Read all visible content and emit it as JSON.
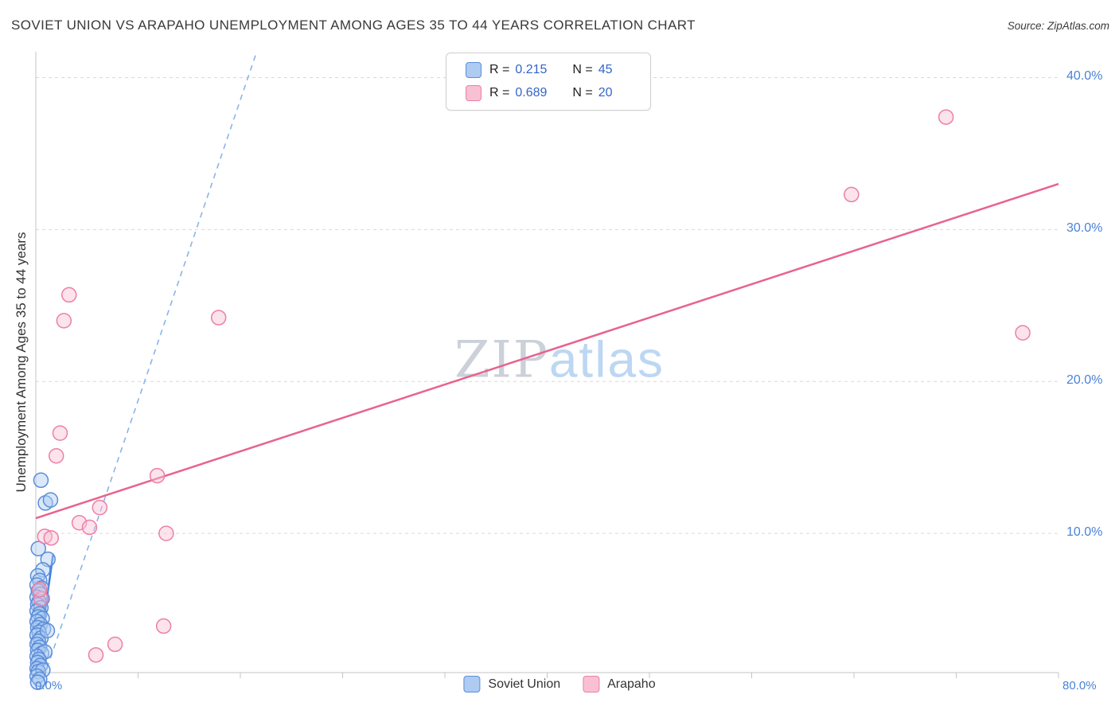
{
  "header": {
    "title": "SOVIET UNION VS ARAPAHO UNEMPLOYMENT AMONG AGES 35 TO 44 YEARS CORRELATION CHART",
    "source": "Source: ZipAtlas.com"
  },
  "watermark": {
    "part1": "ZIP",
    "part2": "atlas"
  },
  "legend_box": {
    "rows": [
      {
        "series": "Soviet Union",
        "r_label": "R =",
        "r": "0.215",
        "n_label": "N =",
        "n": "45"
      },
      {
        "series": "Arapaho",
        "r_label": "R =",
        "r": "0.689",
        "n_label": "N =",
        "n": "20"
      }
    ]
  },
  "axes": {
    "y_label": "Unemployment Among Ages 35 to 44 years",
    "y_ticks": [
      {
        "label": "40.0%",
        "value": 40
      },
      {
        "label": "30.0%",
        "value": 30
      },
      {
        "label": "20.0%",
        "value": 20
      },
      {
        "label": "10.0%",
        "value": 10
      }
    ],
    "x_left_label": "0.0%",
    "x_right_label": "80.0%"
  },
  "bottom_legend": [
    {
      "label": "Soviet Union",
      "fill": "#aecbf2",
      "stroke": "#5b8dd9"
    },
    {
      "label": "Arapaho",
      "fill": "#f9c0d4",
      "stroke": "#ec7fa6"
    }
  ],
  "chart_data": {
    "type": "scatter",
    "title": "Soviet Union vs Arapaho Unemployment Among Ages 35 to 44 years",
    "xlabel": "",
    "ylabel": "Unemployment Among Ages 35 to 44 years",
    "xlim": [
      0,
      80
    ],
    "ylim": [
      0,
      41.7
    ],
    "x_tick_step": 8,
    "y_gridlines": [
      10,
      20,
      30,
      40
    ],
    "series": [
      {
        "name": "Soviet Union",
        "stroke": "#5b8dd9",
        "fill": "#aecbf2",
        "points": [
          [
            0.4,
            13.5
          ],
          [
            0.75,
            12.0
          ],
          [
            1.15,
            12.2
          ],
          [
            0.2,
            9.0
          ],
          [
            0.95,
            8.3
          ],
          [
            0.55,
            7.6
          ],
          [
            0.15,
            7.2
          ],
          [
            0.3,
            6.9
          ],
          [
            0.1,
            6.6
          ],
          [
            0.45,
            6.4
          ],
          [
            0.2,
            6.2
          ],
          [
            0.35,
            6.0
          ],
          [
            0.1,
            5.8
          ],
          [
            0.5,
            5.7
          ],
          [
            0.25,
            5.5
          ],
          [
            0.15,
            5.3
          ],
          [
            0.4,
            5.1
          ],
          [
            0.1,
            4.9
          ],
          [
            0.3,
            4.7
          ],
          [
            0.2,
            4.5
          ],
          [
            0.5,
            4.4
          ],
          [
            0.1,
            4.2
          ],
          [
            0.35,
            4.0
          ],
          [
            0.15,
            3.8
          ],
          [
            0.6,
            3.7
          ],
          [
            0.25,
            3.5
          ],
          [
            0.1,
            3.3
          ],
          [
            0.4,
            3.1
          ],
          [
            0.2,
            2.9
          ],
          [
            0.9,
            3.6
          ],
          [
            0.1,
            2.7
          ],
          [
            0.3,
            2.5
          ],
          [
            0.15,
            2.3
          ],
          [
            0.45,
            2.1
          ],
          [
            0.7,
            2.2
          ],
          [
            0.1,
            1.9
          ],
          [
            0.25,
            1.7
          ],
          [
            0.15,
            1.5
          ],
          [
            0.35,
            1.3
          ],
          [
            0.1,
            1.1
          ],
          [
            0.2,
            0.9
          ],
          [
            0.55,
            1.0
          ],
          [
            0.1,
            0.6
          ],
          [
            0.3,
            0.4
          ],
          [
            0.15,
            0.2
          ]
        ],
        "trends": [
          {
            "x1": 0.05,
            "y1": 0.9,
            "x2": 1.35,
            "y2": 8.6,
            "color": "#3b7de0",
            "width": 2.5,
            "dashed": false
          },
          {
            "x1": 0.1,
            "y1": -0.8,
            "x2": 17.2,
            "y2": 41.5,
            "color": "#8ab4e8",
            "width": 1.6,
            "dashed": true
          }
        ]
      },
      {
        "name": "Arapaho",
        "stroke": "#ec7fa6",
        "fill": "#f9c0d4",
        "points": [
          [
            2.6,
            25.7
          ],
          [
            2.2,
            24.0
          ],
          [
            14.3,
            24.2
          ],
          [
            1.9,
            16.6
          ],
          [
            1.6,
            15.1
          ],
          [
            9.5,
            13.8
          ],
          [
            5.0,
            11.7
          ],
          [
            3.4,
            10.7
          ],
          [
            4.2,
            10.4
          ],
          [
            10.2,
            10.0
          ],
          [
            0.7,
            9.8
          ],
          [
            1.2,
            9.7
          ],
          [
            10.0,
            3.9
          ],
          [
            6.2,
            2.7
          ],
          [
            4.7,
            2.0
          ],
          [
            0.4,
            5.7
          ],
          [
            0.3,
            6.3
          ],
          [
            63.8,
            32.3
          ],
          [
            71.2,
            37.4
          ],
          [
            77.2,
            23.2
          ]
        ],
        "trends": [
          {
            "x1": 0,
            "y1": 11.0,
            "x2": 80,
            "y2": 33.0,
            "color": "#e8638e",
            "width": 2.5,
            "dashed": false
          }
        ]
      }
    ]
  }
}
